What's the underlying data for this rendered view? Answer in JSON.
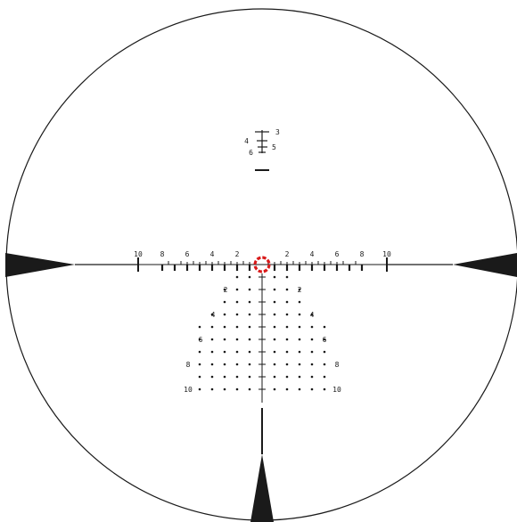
{
  "colors": {
    "background": "#ffffff",
    "ink": "#1a1a1a",
    "center_marker": "#d91a1a"
  },
  "icons": {
    "center": "red-dashed-ring-icon"
  },
  "reticle": {
    "top_scale": {
      "left_labels": [
        "4",
        "6"
      ],
      "right_labels": [
        "3",
        "5"
      ]
    },
    "horizontal_labels": {
      "left": [
        "10",
        "8",
        "6",
        "4",
        "2"
      ],
      "right": [
        "2",
        "4",
        "6",
        "8",
        "10"
      ]
    },
    "dot_grid": {
      "rows": [
        {
          "label": "2"
        },
        {
          "label": ""
        },
        {
          "label": "4"
        },
        {
          "label": ""
        },
        {
          "label": "6"
        },
        {
          "label": ""
        },
        {
          "label": "8"
        },
        {
          "label": ""
        },
        {
          "label": "10"
        },
        {
          "label": ""
        }
      ]
    }
  }
}
